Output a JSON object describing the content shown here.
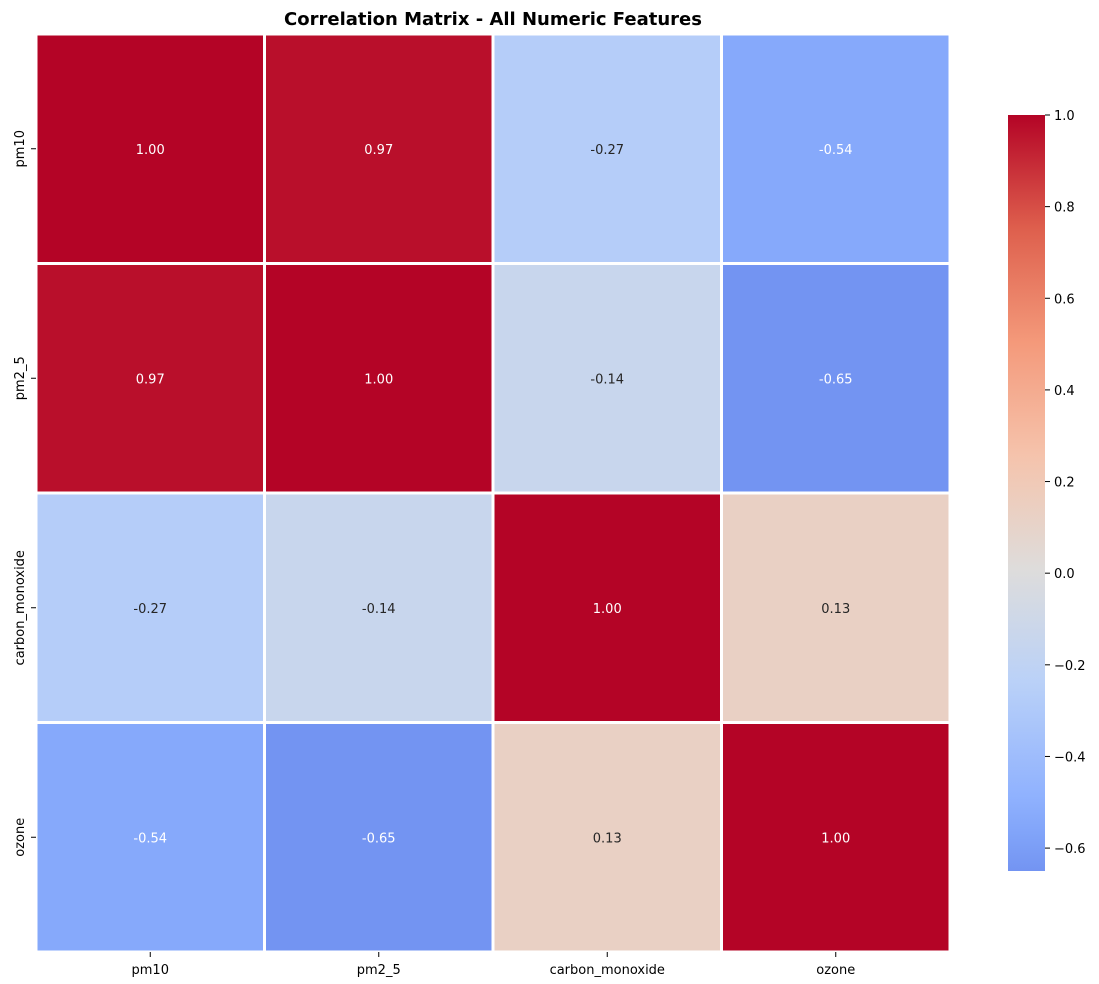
{
  "chart_data": {
    "type": "heatmap",
    "title": "Correlation Matrix - All Numeric Features",
    "xlabel": "",
    "ylabel": "",
    "x_categories": [
      "pm10",
      "pm2_5",
      "carbon_monoxide",
      "ozone"
    ],
    "y_categories": [
      "pm10",
      "pm2_5",
      "carbon_monoxide",
      "ozone"
    ],
    "values": [
      [
        1.0,
        0.97,
        -0.27,
        -0.54
      ],
      [
        0.97,
        1.0,
        -0.14,
        -0.65
      ],
      [
        -0.27,
        -0.14,
        1.0,
        0.13
      ],
      [
        -0.54,
        -0.65,
        0.13,
        1.0
      ]
    ],
    "annotations": [
      [
        "1.00",
        "0.97",
        "-0.27",
        "-0.54"
      ],
      [
        "0.97",
        "1.00",
        "-0.14",
        "-0.65"
      ],
      [
        "-0.27",
        "-0.14",
        "1.00",
        "0.13"
      ],
      [
        "-0.54",
        "-0.65",
        "0.13",
        "1.00"
      ]
    ],
    "colormap": "coolwarm",
    "colorbar": {
      "range": [
        -0.65,
        1.0
      ],
      "ticks": [
        -0.6,
        -0.4,
        -0.2,
        0.0,
        0.2,
        0.4,
        0.6,
        0.8,
        1.0
      ],
      "tick_labels": [
        "−0.6",
        "−0.4",
        "−0.2",
        "0.0",
        "0.2",
        "0.4",
        "0.6",
        "0.8",
        "1.0"
      ]
    },
    "cell_border_color": "#ffffff",
    "grid": false
  }
}
